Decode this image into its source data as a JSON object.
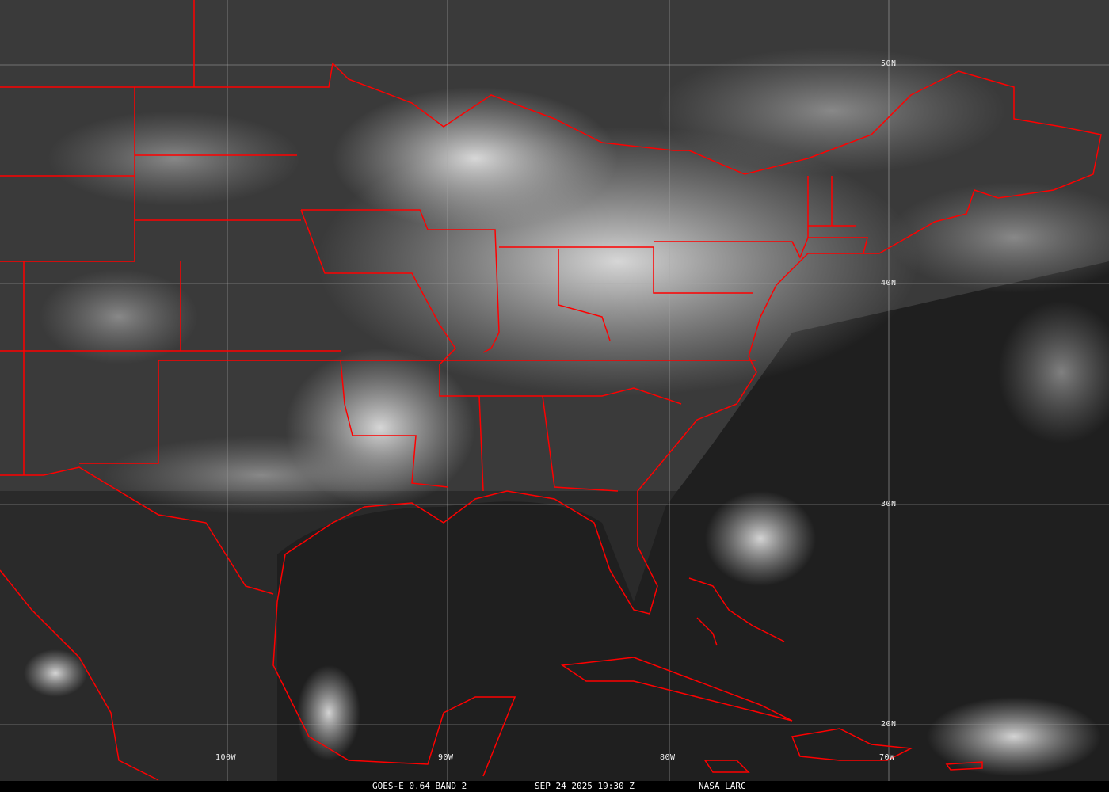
{
  "image": {
    "type": "satellite-visible-imagery",
    "border_color": "#ff0000",
    "grid_color": "#b0b0b0"
  },
  "grid_labels": {
    "lat": [
      "50N",
      "40N",
      "30N",
      "20N"
    ],
    "lon": [
      "100W",
      "90W",
      "80W",
      "70W"
    ]
  },
  "caption": {
    "product": "GOES-E 0.64 BAND 2",
    "datetime": "SEP 24 2025 19:30 Z",
    "source": "NASA LARC"
  }
}
